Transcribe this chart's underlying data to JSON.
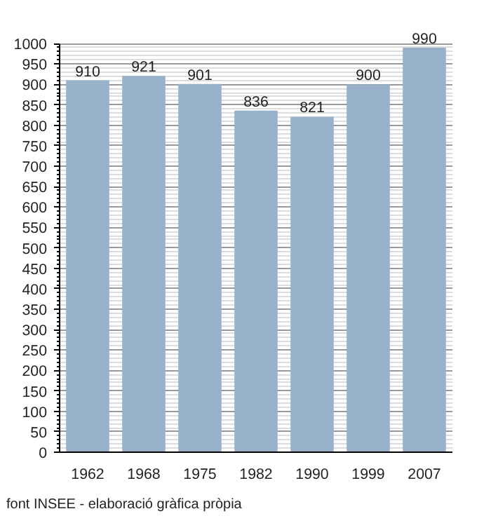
{
  "chart_data": {
    "type": "bar",
    "categories": [
      "1962",
      "1968",
      "1975",
      "1982",
      "1990",
      "1999",
      "2007"
    ],
    "values": [
      910,
      921,
      901,
      836,
      821,
      900,
      990
    ],
    "color": "#98b1cb",
    "ylim": [
      0,
      1000
    ],
    "yticks": [
      0,
      50,
      100,
      150,
      200,
      250,
      300,
      350,
      400,
      450,
      500,
      550,
      600,
      650,
      700,
      750,
      800,
      850,
      900,
      950,
      1000
    ],
    "grid": "y",
    "data_labels": true,
    "annotations": [
      "font INSEE - elaboració gràfica pròpia"
    ]
  }
}
